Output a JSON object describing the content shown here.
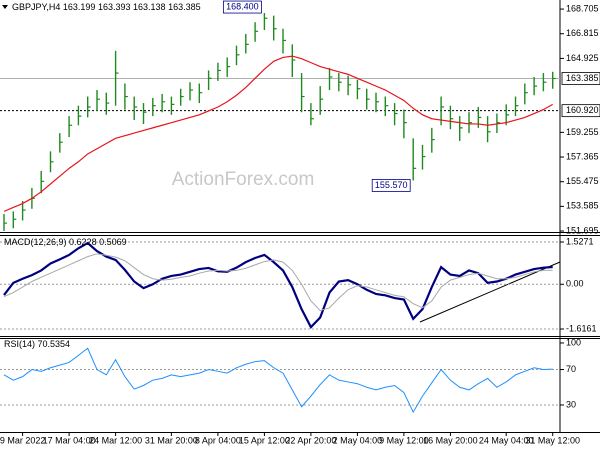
{
  "chart_data": [
    {
      "type": "ohlc",
      "title": "GBPJPY,H4",
      "ohlc": [
        163.199,
        163.393,
        163.138,
        163.385
      ],
      "watermark": "ActionForex.com",
      "ylim": [
        151.62,
        169.4
      ],
      "yticks": [
        168.705,
        166.815,
        164.925,
        159.255,
        157.365,
        155.475,
        153.585,
        151.695
      ],
      "last_price": 163.385,
      "level": {
        "value": 160.92,
        "label": "160.920"
      },
      "annotations": [
        {
          "value": 168.4,
          "label": "168.400"
        },
        {
          "value": 155.57,
          "label": "155.570"
        }
      ],
      "series": [
        {
          "color": "#1f8a1f",
          "high": [
            153.0,
            153.2,
            154.0,
            155.0,
            156.3,
            157.8,
            159.2,
            160.5,
            161.3,
            162.0,
            162.5,
            162.3,
            165.5,
            163.0,
            162.0,
            161.5,
            161.9,
            162.2,
            162.0,
            162.6,
            163.1,
            163.0,
            164.0,
            164.6,
            165.0,
            165.9,
            166.8,
            167.7,
            168.4,
            168.2,
            167.2,
            166.0,
            163.8,
            161.5,
            162.8,
            164.2,
            163.8,
            163.6,
            163.3,
            162.6,
            162.3,
            162.0,
            161.5,
            161.0,
            158.8,
            158.3,
            159.6,
            162.0,
            161.3,
            160.5,
            160.8,
            161.2,
            160.5,
            160.7,
            161.4,
            162.0,
            163.0,
            163.5,
            163.8,
            163.9
          ],
          "low": [
            151.7,
            151.9,
            152.5,
            153.4,
            154.6,
            156.2,
            157.7,
            158.9,
            159.8,
            160.4,
            160.9,
            160.6,
            161.3,
            161.0,
            160.2,
            159.9,
            160.5,
            160.8,
            160.6,
            161.3,
            161.7,
            161.5,
            162.5,
            163.2,
            163.5,
            164.4,
            165.3,
            166.2,
            167.1,
            166.3,
            165.3,
            163.5,
            160.8,
            159.8,
            160.6,
            162.5,
            162.4,
            162.1,
            161.8,
            161.0,
            160.8,
            160.5,
            159.8,
            158.8,
            155.57,
            156.4,
            157.7,
            159.8,
            159.5,
            158.6,
            159.2,
            159.6,
            158.5,
            159.2,
            159.8,
            160.5,
            161.4,
            162.1,
            162.4,
            162.6
          ],
          "close": [
            152.3,
            152.6,
            153.3,
            154.2,
            155.5,
            157.0,
            158.5,
            159.8,
            160.5,
            161.2,
            161.8,
            161.5,
            163.8,
            162.0,
            161.2,
            160.8,
            161.3,
            161.6,
            161.4,
            162.0,
            162.5,
            162.3,
            163.4,
            164.0,
            164.3,
            165.2,
            166.0,
            167.0,
            168.0,
            167.2,
            166.3,
            164.8,
            162.0,
            160.3,
            161.8,
            163.5,
            163.1,
            162.9,
            162.6,
            161.8,
            161.6,
            161.3,
            160.7,
            160.0,
            156.5,
            157.4,
            158.7,
            161.2,
            160.3,
            159.6,
            160.0,
            160.4,
            159.3,
            160.0,
            160.6,
            161.3,
            162.3,
            162.8,
            163.1,
            163.385
          ]
        },
        {
          "color": "#e8141c",
          "values": [
            153.2,
            153.5,
            153.8,
            154.2,
            154.7,
            155.3,
            155.9,
            156.5,
            157.0,
            157.6,
            158.0,
            158.4,
            158.8,
            159.0,
            159.2,
            159.4,
            159.6,
            159.8,
            160.0,
            160.2,
            160.4,
            160.6,
            160.9,
            161.2,
            161.6,
            162.1,
            162.7,
            163.4,
            164.1,
            164.7,
            165.0,
            165.1,
            164.9,
            164.6,
            164.3,
            164.1,
            163.9,
            163.7,
            163.4,
            163.1,
            162.8,
            162.5,
            162.1,
            161.7,
            161.1,
            160.6,
            160.3,
            160.2,
            160.1,
            160.0,
            159.9,
            159.9,
            159.8,
            159.9,
            160.0,
            160.2,
            160.4,
            160.7,
            161.0,
            161.4
          ]
        }
      ]
    },
    {
      "type": "line",
      "title": "MACD(12,26,9)",
      "readout": [
        0.6228,
        0.5069
      ],
      "ylim": [
        -1.869,
        1.744
      ],
      "yticks": [
        1.5271,
        {
          "value": 0,
          "label": "0.00"
        },
        -1.6161
      ],
      "series": [
        {
          "color": "#000080",
          "width": 2.2,
          "values": [
            -0.39,
            0.05,
            0.2,
            0.33,
            0.5,
            0.75,
            0.9,
            1.06,
            1.3,
            1.49,
            1.2,
            1.0,
            0.88,
            0.52,
            0.1,
            -0.14,
            0.0,
            0.2,
            0.3,
            0.35,
            0.45,
            0.55,
            0.59,
            0.47,
            0.45,
            0.6,
            0.8,
            0.95,
            1.06,
            0.8,
            0.5,
            -0.1,
            -0.9,
            -1.55,
            -1.2,
            -0.3,
            0.1,
            0.15,
            0.0,
            -0.2,
            -0.35,
            -0.4,
            -0.5,
            -0.55,
            -1.25,
            -0.9,
            -0.1,
            0.62,
            0.35,
            0.3,
            0.5,
            0.4,
            0.05,
            0.1,
            0.2,
            0.35,
            0.45,
            0.55,
            0.6,
            0.6228
          ]
        },
        {
          "color": "#a8a8a8",
          "width": 1,
          "values": [
            -0.45,
            -0.3,
            -0.1,
            0.1,
            0.25,
            0.4,
            0.55,
            0.7,
            0.85,
            1.0,
            1.1,
            1.05,
            0.98,
            0.85,
            0.6,
            0.35,
            0.2,
            0.15,
            0.18,
            0.25,
            0.3,
            0.4,
            0.48,
            0.5,
            0.48,
            0.5,
            0.58,
            0.7,
            0.82,
            0.88,
            0.8,
            0.5,
            0.0,
            -0.6,
            -0.95,
            -0.85,
            -0.5,
            -0.2,
            -0.05,
            -0.1,
            -0.2,
            -0.3,
            -0.4,
            -0.45,
            -0.7,
            -0.85,
            -0.6,
            -0.1,
            0.15,
            0.25,
            0.35,
            0.4,
            0.3,
            0.2,
            0.2,
            0.25,
            0.35,
            0.45,
            0.5,
            0.5069
          ]
        }
      ]
    },
    {
      "type": "line",
      "title": "RSI(14)",
      "readout": [
        70.5354
      ],
      "ylim": [
        -0.5,
        105.6
      ],
      "yticks": [
        100,
        70,
        30
      ],
      "categories": [
        null,
        null,
        "9 Mar 2022",
        null,
        null,
        null,
        null,
        "17 Mar 04:00",
        null,
        null,
        null,
        null,
        "24 Mar 12:00",
        null,
        null,
        null,
        null,
        null,
        "31 Mar 20:00",
        null,
        null,
        null,
        null,
        "8 Apr 04:00",
        null,
        null,
        null,
        null,
        "15 Apr 12:00",
        null,
        null,
        null,
        null,
        "22 Apr 20:00",
        null,
        null,
        null,
        null,
        "2 May 04:00",
        null,
        null,
        null,
        null,
        "9 May 12:00",
        null,
        null,
        null,
        null,
        "16 May 20:00",
        null,
        null,
        null,
        null,
        null,
        "24 May 04:00",
        null,
        null,
        null,
        null,
        "31 May 12:00"
      ],
      "series": [
        {
          "color": "#1e90ff",
          "width": 1,
          "values": [
            64,
            58,
            62,
            70,
            68,
            72,
            75,
            78,
            86,
            94,
            70,
            64,
            81,
            62,
            48,
            52,
            58,
            60,
            64,
            62,
            64,
            66,
            70,
            68,
            66,
            72,
            76,
            79,
            80,
            72,
            66,
            47,
            28,
            40,
            53,
            64,
            58,
            56,
            54,
            50,
            47,
            50,
            52,
            44,
            22,
            40,
            55,
            70,
            58,
            50,
            47,
            54,
            60,
            50,
            56,
            64,
            68,
            72,
            70,
            70.5354
          ]
        }
      ]
    }
  ]
}
